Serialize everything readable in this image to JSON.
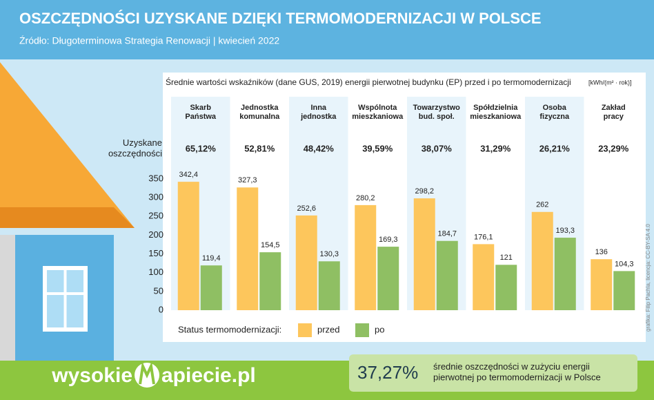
{
  "chart_data": {
    "type": "bar",
    "title": "OSZCZĘDNOŚCI UZYSKANE DZIĘKI TERMOMODERNIZACJI W POLSCE",
    "subtitle": "Źródło: Długoterminowa Strategia Renowacji | kwiecień 2022",
    "axis_title": "Średnie wartości wskaźników (dane GUS, 2019) energii pierwotnej budynku (EP) przed i po termomodernizacji",
    "unit": "[kWh/(m² · rok)]",
    "categories": [
      "Skarb\nPaństwa",
      "Jednostka\nkomunalna",
      "Inna\njednostka",
      "Wspólnota\nmieszkaniowa",
      "Towarzystwo\nbud. społ.",
      "Spółdzielnia\nmieszkaniowa",
      "Osoba\nfizyczna",
      "Zakład\npracy"
    ],
    "savings": {
      "label": "Uzyskane\noszczędności",
      "values": [
        65.12,
        52.81,
        48.42,
        39.59,
        38.07,
        31.29,
        26.21,
        23.29
      ],
      "value_labels": [
        "65,12%",
        "52,81%",
        "48,42%",
        "39,59%",
        "38,07%",
        "31,29%",
        "26,21%",
        "23,29%"
      ]
    },
    "series": [
      {
        "name": "przed",
        "color": "#fdc65c",
        "values": [
          342.4,
          327.3,
          252.6,
          280.2,
          298.2,
          176.1,
          262,
          136
        ],
        "value_labels": [
          "342,4",
          "327,3",
          "252,6",
          "280,2",
          "298,2",
          "176,1",
          "262",
          "136"
        ]
      },
      {
        "name": "po",
        "color": "#8fbf63",
        "values": [
          119.4,
          154.5,
          130.3,
          169.3,
          184.7,
          121,
          193.3,
          104.3
        ],
        "value_labels": [
          "119,4",
          "154,5",
          "130,3",
          "169,3",
          "184,7",
          "121",
          "193,3",
          "104,3"
        ]
      }
    ],
    "legend_title": "Status termomodernizacji:",
    "ylim": [
      0,
      350
    ],
    "yticks": [
      0,
      50,
      100,
      150,
      200,
      250,
      300,
      350
    ],
    "brand": [
      "wysokie",
      "apiecie.pl"
    ],
    "summary": {
      "value": 37.27,
      "value_label": "37,27%",
      "text": "średnie oszczędności w zużyciu energii\npierwotnej po termomodernizacji w Polsce"
    },
    "credit": "grafika: Filip Pachla, licencja: CC-BY-SA 4.0"
  }
}
